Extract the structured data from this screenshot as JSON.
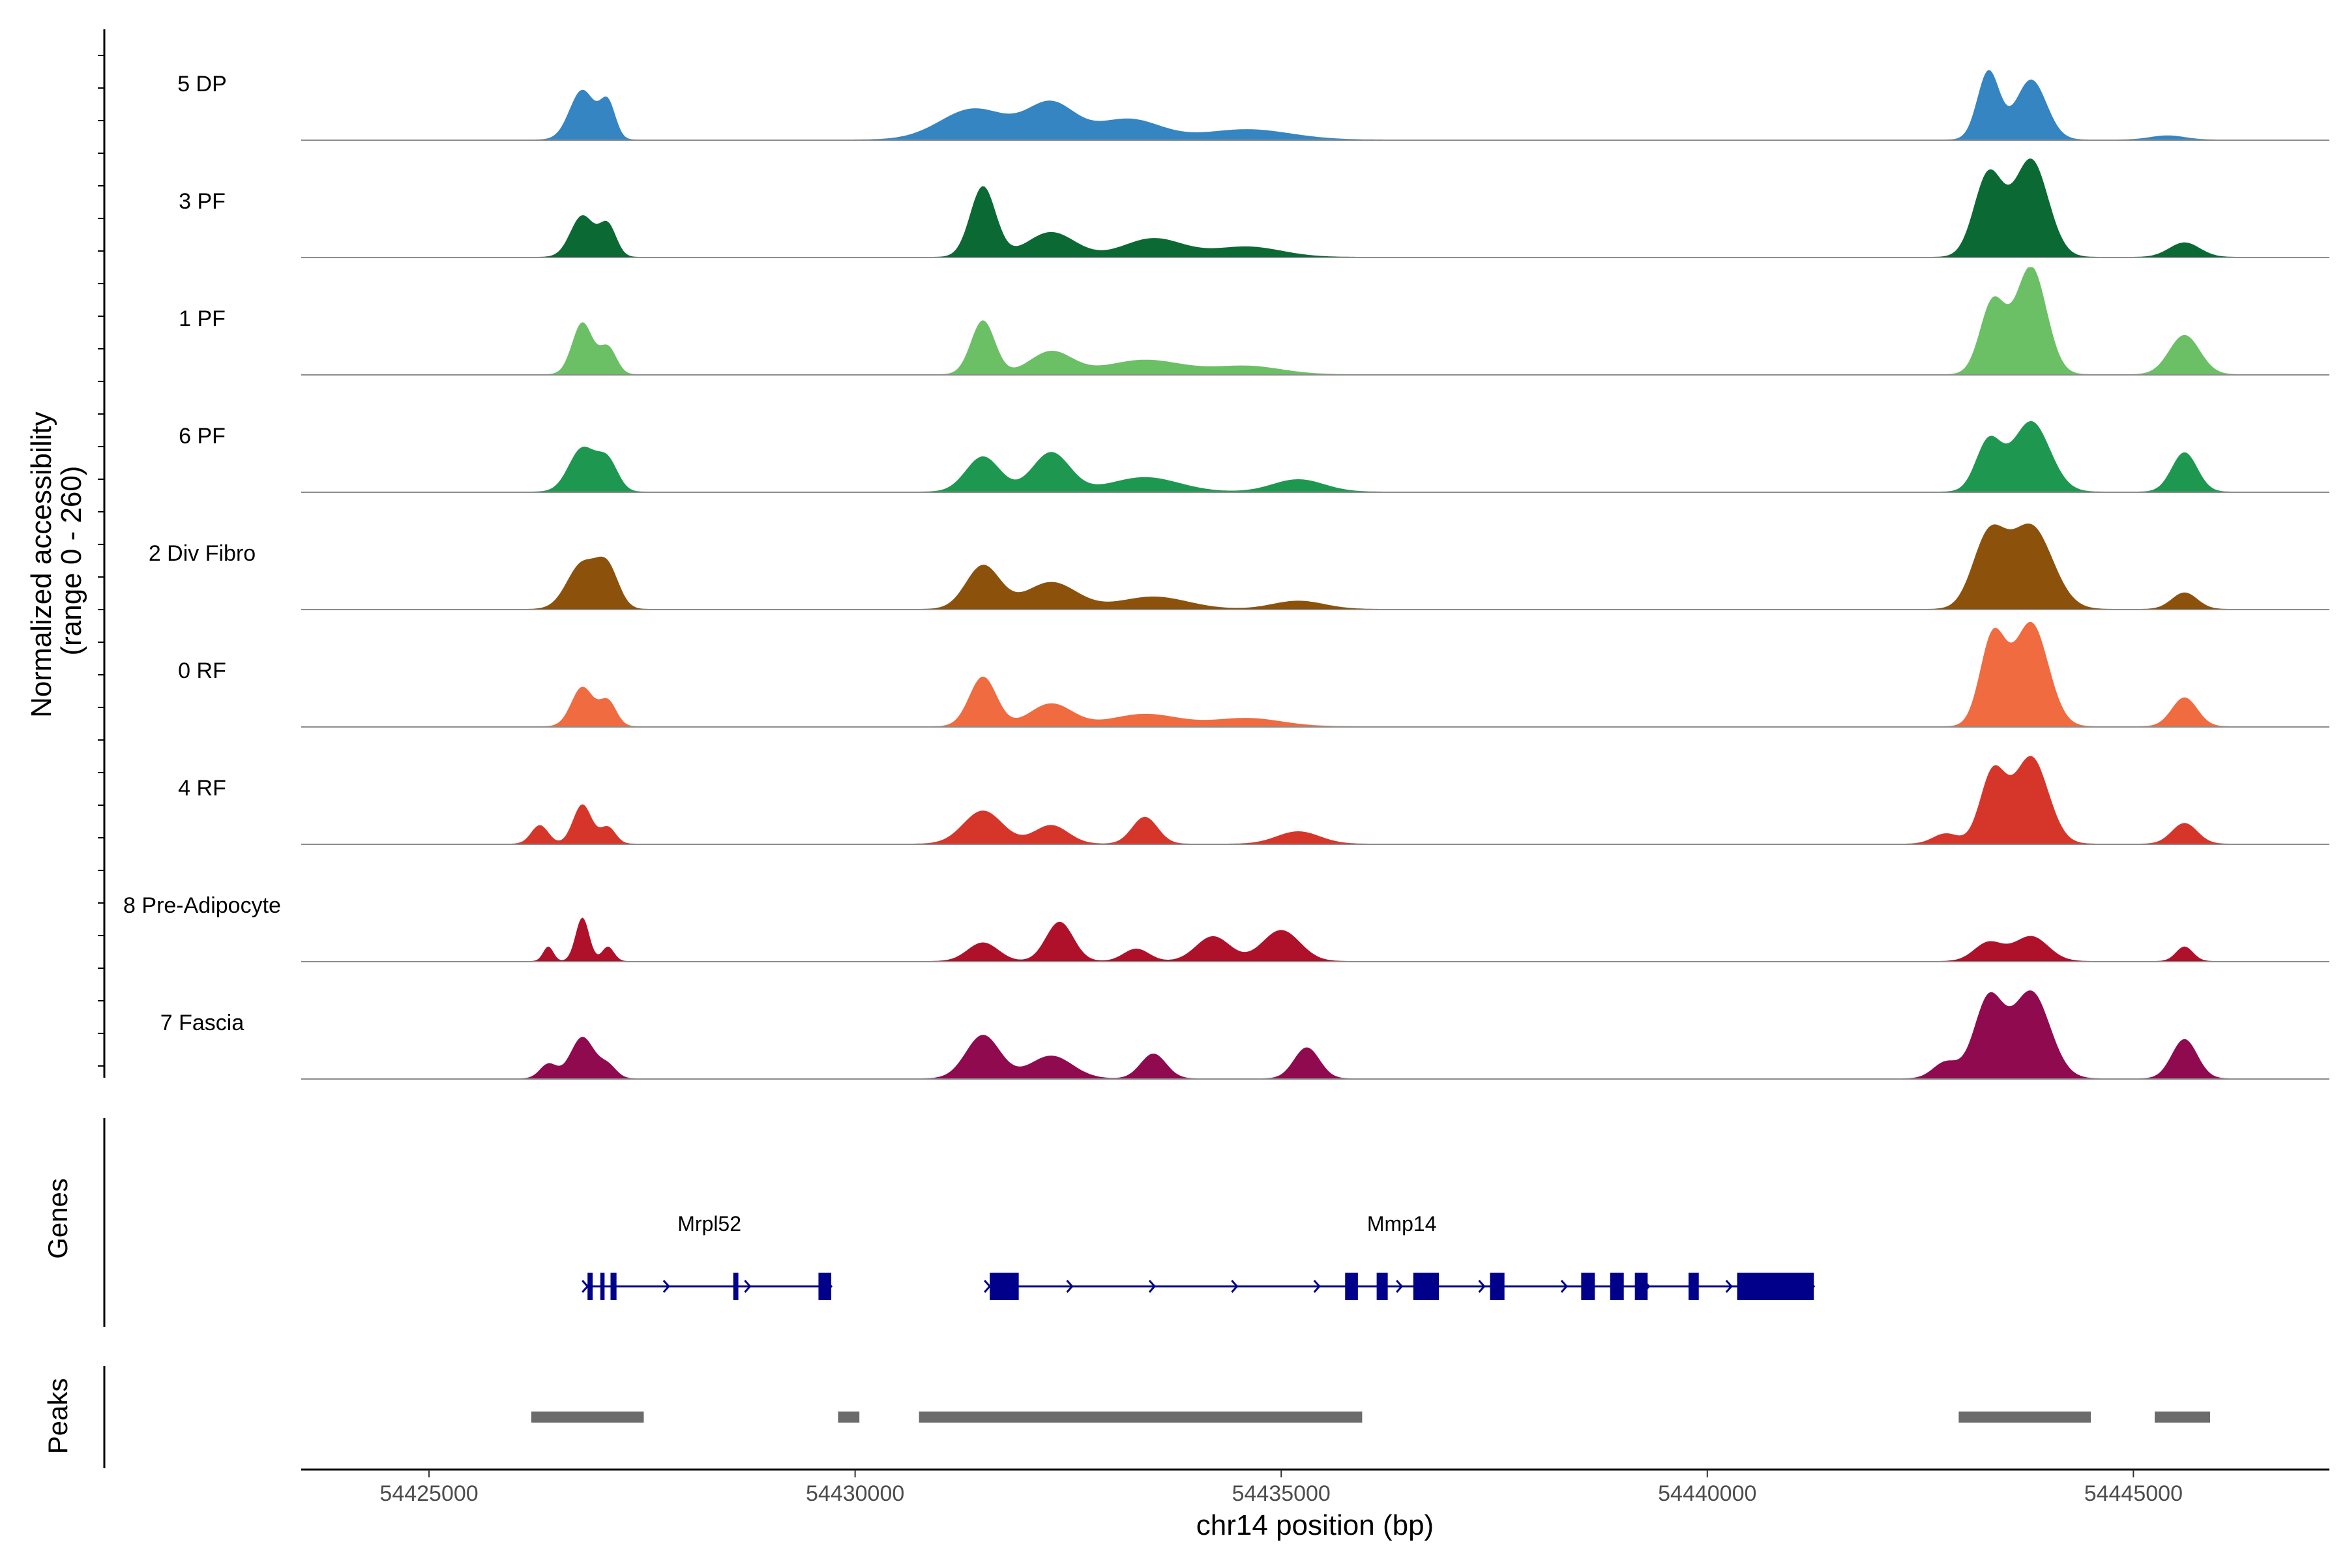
{
  "chart_data": {
    "type": "area",
    "region": {
      "chromosome": "chr14",
      "start": 54423500,
      "end": 54447300
    },
    "xlabel": "chr14 position (bp)",
    "xticks": [
      54425000,
      54430000,
      54435000,
      54440000,
      54445000
    ],
    "coverage_panel": {
      "ylabel_line1": "Normalized accessibility",
      "ylabel_line2": "(range 0 - 260)",
      "ylim": [
        0,
        260
      ]
    },
    "genes_panel_title": "Genes",
    "peaks_panel_title": "Peaks",
    "tracks": [
      {
        "name": "5 DP",
        "color": "#3485c2",
        "peaks": [
          [
            54426800,
            120,
            150
          ],
          [
            54427100,
            85,
            90
          ],
          [
            54431400,
            75,
            400
          ],
          [
            54432300,
            85,
            280
          ],
          [
            54433200,
            50,
            380
          ],
          [
            54434600,
            25,
            500
          ],
          [
            54443300,
            165,
            130
          ],
          [
            54443800,
            145,
            180
          ],
          [
            54445400,
            10,
            200
          ]
        ]
      },
      {
        "name": "3 PF",
        "color": "#0b6a34",
        "peaks": [
          [
            54426800,
            100,
            140
          ],
          [
            54427100,
            75,
            100
          ],
          [
            54431500,
            170,
            150
          ],
          [
            54432300,
            60,
            280
          ],
          [
            54433500,
            45,
            350
          ],
          [
            54434600,
            25,
            400
          ],
          [
            54443300,
            200,
            170
          ],
          [
            54443800,
            235,
            200
          ],
          [
            54445600,
            35,
            180
          ]
        ]
      },
      {
        "name": "1 PF",
        "color": "#6bbf65",
        "peaks": [
          [
            54426800,
            125,
            120
          ],
          [
            54427100,
            65,
            100
          ],
          [
            54431500,
            130,
            140
          ],
          [
            54432300,
            55,
            250
          ],
          [
            54433400,
            35,
            450
          ],
          [
            54434600,
            20,
            400
          ],
          [
            54443350,
            175,
            150
          ],
          [
            54443800,
            260,
            180
          ],
          [
            54445600,
            95,
            180
          ]
        ]
      },
      {
        "name": "6 PF",
        "color": "#1e9850",
        "peaks": [
          [
            54426800,
            105,
            160
          ],
          [
            54427100,
            70,
            120
          ],
          [
            54431500,
            85,
            200
          ],
          [
            54432300,
            95,
            220
          ],
          [
            54433400,
            35,
            400
          ],
          [
            54435200,
            30,
            300
          ],
          [
            54443300,
            120,
            150
          ],
          [
            54443800,
            170,
            220
          ],
          [
            54445600,
            95,
            150
          ]
        ]
      },
      {
        "name": "2 Div Fibro",
        "color": "#8c520c",
        "peaks": [
          [
            54426800,
            110,
            180
          ],
          [
            54427100,
            90,
            130
          ],
          [
            54431500,
            105,
            200
          ],
          [
            54432300,
            65,
            300
          ],
          [
            54433500,
            30,
            400
          ],
          [
            54435200,
            20,
            300
          ],
          [
            54443300,
            170,
            190
          ],
          [
            54443800,
            200,
            250
          ],
          [
            54445600,
            40,
            150
          ]
        ]
      },
      {
        "name": "0 RF",
        "color": "#f06b40",
        "peaks": [
          [
            54426800,
            95,
            130
          ],
          [
            54427100,
            60,
            100
          ],
          [
            54431500,
            120,
            160
          ],
          [
            54432300,
            55,
            250
          ],
          [
            54433400,
            30,
            400
          ],
          [
            54434600,
            20,
            400
          ],
          [
            54443350,
            215,
            150
          ],
          [
            54443800,
            250,
            200
          ],
          [
            54445600,
            70,
            150
          ]
        ]
      },
      {
        "name": "4 RF",
        "color": "#d6362a",
        "peaks": [
          [
            54426300,
            45,
            100
          ],
          [
            54426800,
            95,
            110
          ],
          [
            54427100,
            40,
            90
          ],
          [
            54431500,
            80,
            230
          ],
          [
            54432300,
            45,
            200
          ],
          [
            54433400,
            65,
            150
          ],
          [
            54435200,
            30,
            250
          ],
          [
            54442800,
            25,
            150
          ],
          [
            54443350,
            170,
            150
          ],
          [
            54443800,
            210,
            200
          ],
          [
            54445600,
            50,
            150
          ]
        ]
      },
      {
        "name": "8 Pre-Adipocyte",
        "color": "#b0112a",
        "peaks": [
          [
            54426400,
            35,
            60
          ],
          [
            54426800,
            105,
            80
          ],
          [
            54427100,
            35,
            70
          ],
          [
            54431500,
            45,
            180
          ],
          [
            54432400,
            95,
            160
          ],
          [
            54433300,
            30,
            150
          ],
          [
            54434200,
            60,
            200
          ],
          [
            54435000,
            75,
            220
          ],
          [
            54443300,
            45,
            170
          ],
          [
            54443800,
            60,
            200
          ],
          [
            54445600,
            35,
            100
          ]
        ]
      },
      {
        "name": "7 Fascia",
        "color": "#8f0a4f",
        "peaks": [
          [
            54426400,
            35,
            100
          ],
          [
            54426800,
            100,
            140
          ],
          [
            54427100,
            30,
            100
          ],
          [
            54431500,
            105,
            200
          ],
          [
            54432300,
            55,
            250
          ],
          [
            54433500,
            60,
            150
          ],
          [
            54435300,
            75,
            150
          ],
          [
            54442800,
            40,
            150
          ],
          [
            54443300,
            190,
            170
          ],
          [
            54443800,
            210,
            220
          ],
          [
            54445600,
            95,
            150
          ]
        ]
      }
    ],
    "genes": [
      {
        "name": "Mrpl52",
        "strand": "+",
        "start": 54426860,
        "end": 54429720,
        "exons": [
          [
            54426860,
            54426920
          ],
          [
            54427010,
            54427060
          ],
          [
            54427130,
            54427200
          ],
          [
            54428570,
            54428630
          ],
          [
            54429570,
            54429720
          ]
        ]
      },
      {
        "name": "Mmp14",
        "strand": "+",
        "start": 54431580,
        "end": 54441250,
        "exons": [
          [
            54431580,
            54431920
          ],
          [
            54435750,
            54435900
          ],
          [
            54436120,
            54436250
          ],
          [
            54436550,
            54436850
          ],
          [
            54437450,
            54437620
          ],
          [
            54438520,
            54438680
          ],
          [
            54438860,
            54439020
          ],
          [
            54439150,
            54439300
          ],
          [
            54439780,
            54439900
          ],
          [
            54440350,
            54441250
          ]
        ]
      }
    ],
    "peaks": [
      [
        54426200,
        54427520
      ],
      [
        54429800,
        54430050
      ],
      [
        54430750,
        54435950
      ],
      [
        54442950,
        54444500
      ],
      [
        54445250,
        54445900
      ]
    ]
  }
}
